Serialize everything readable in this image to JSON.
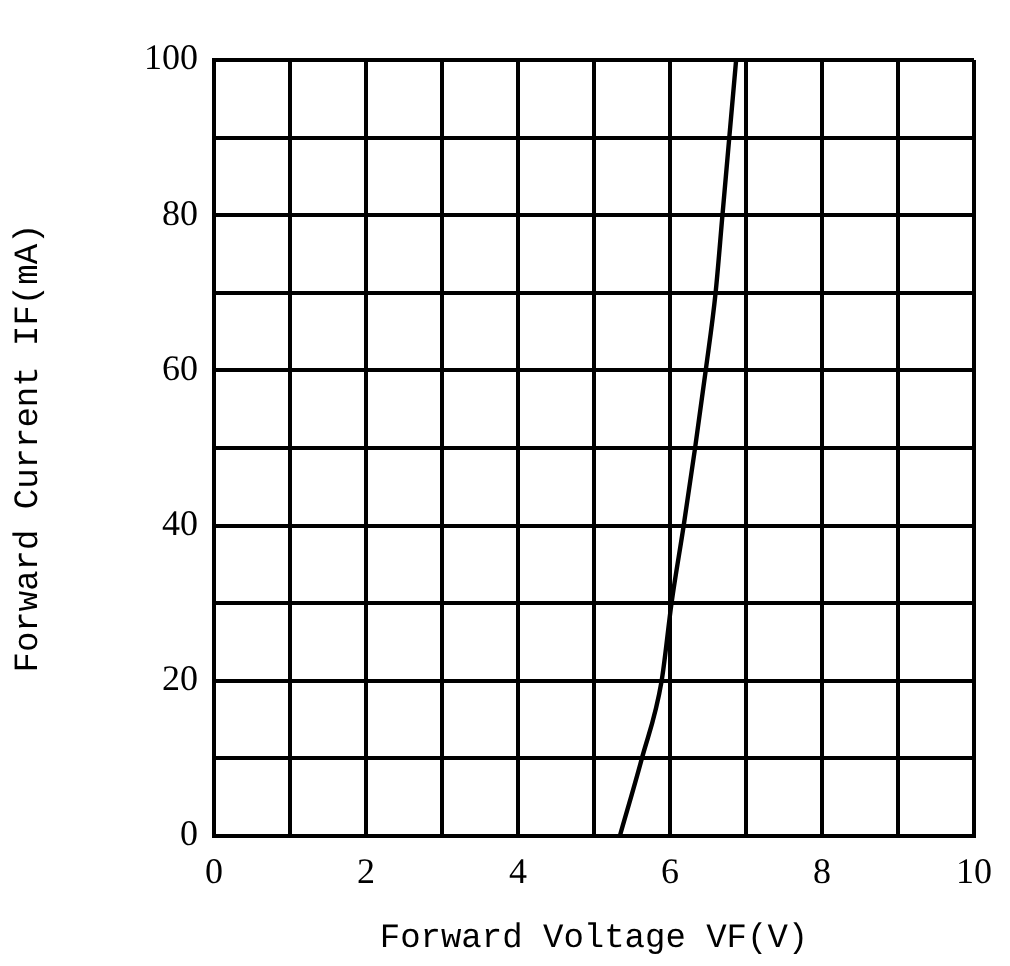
{
  "chart_data": {
    "type": "line",
    "xlabel": "Forward Voltage VF(V)",
    "ylabel": "Forward Current IF(mA)",
    "xlim": [
      0,
      10
    ],
    "ylim": [
      0,
      100
    ],
    "xticks": [
      0,
      {
        "value": 1,
        "label": null
      },
      2,
      {
        "value": 3,
        "label": null
      },
      4,
      {
        "value": 5,
        "label": null
      },
      6,
      {
        "value": 7,
        "label": null
      },
      8,
      {
        "value": 9,
        "label": null
      },
      10
    ],
    "yticks": [
      0,
      {
        "value": 10,
        "label": null
      },
      20,
      {
        "value": 30,
        "label": null
      },
      40,
      {
        "value": 50,
        "label": null
      },
      60,
      {
        "value": 70,
        "label": null
      },
      80,
      {
        "value": 90,
        "label": null
      },
      100
    ],
    "grid": true,
    "legend": false,
    "marker": "none",
    "line_style": "solid",
    "series": [
      {
        "color": "#000000",
        "x": [
          5.34,
          5.63,
          5.89,
          6.02,
          6.18,
          6.33,
          6.47,
          6.6,
          6.69,
          6.78,
          6.87
        ],
        "values": [
          0,
          10,
          20,
          30,
          40,
          50,
          60,
          70,
          80,
          90,
          100
        ]
      }
    ]
  }
}
